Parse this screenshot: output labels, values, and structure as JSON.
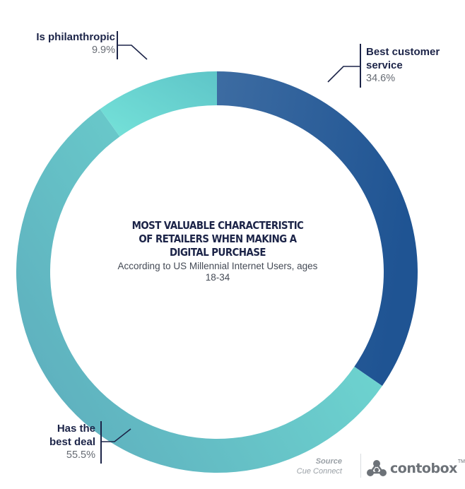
{
  "chart_data": {
    "type": "pie",
    "title": "MOST VALUABLE CHARACTERISTIC OF RETAILERS WHEN MAKING A DIGITAL PURCHASE",
    "subtitle": "According to US Millennial Internet Users, ages 18-34",
    "categories": [
      "Best customer service",
      "Has the best deal",
      "Is philanthropic"
    ],
    "values": [
      34.6,
      55.5,
      9.9
    ],
    "value_labels": [
      "34.6%",
      "55.5%",
      "9.9%"
    ],
    "colors": {
      "Best customer service": [
        "#3d6ca2",
        "#1f5493"
      ],
      "Has the best deal": [
        "#74e3d7",
        "#5fb2bf"
      ],
      "Is philanthropic": [
        "#75e2d9",
        "#5ec5c8"
      ]
    },
    "label_lines": {
      "Best customer service": [
        "Best customer",
        "service"
      ],
      "Has the best deal": [
        "Has the",
        "best deal"
      ],
      "Is philanthropic": [
        "Is philanthropic"
      ]
    }
  },
  "footer": {
    "source_heading": "Source",
    "source_value": "Cue Connect",
    "brand": "contobox",
    "brand_tm": "TM"
  }
}
